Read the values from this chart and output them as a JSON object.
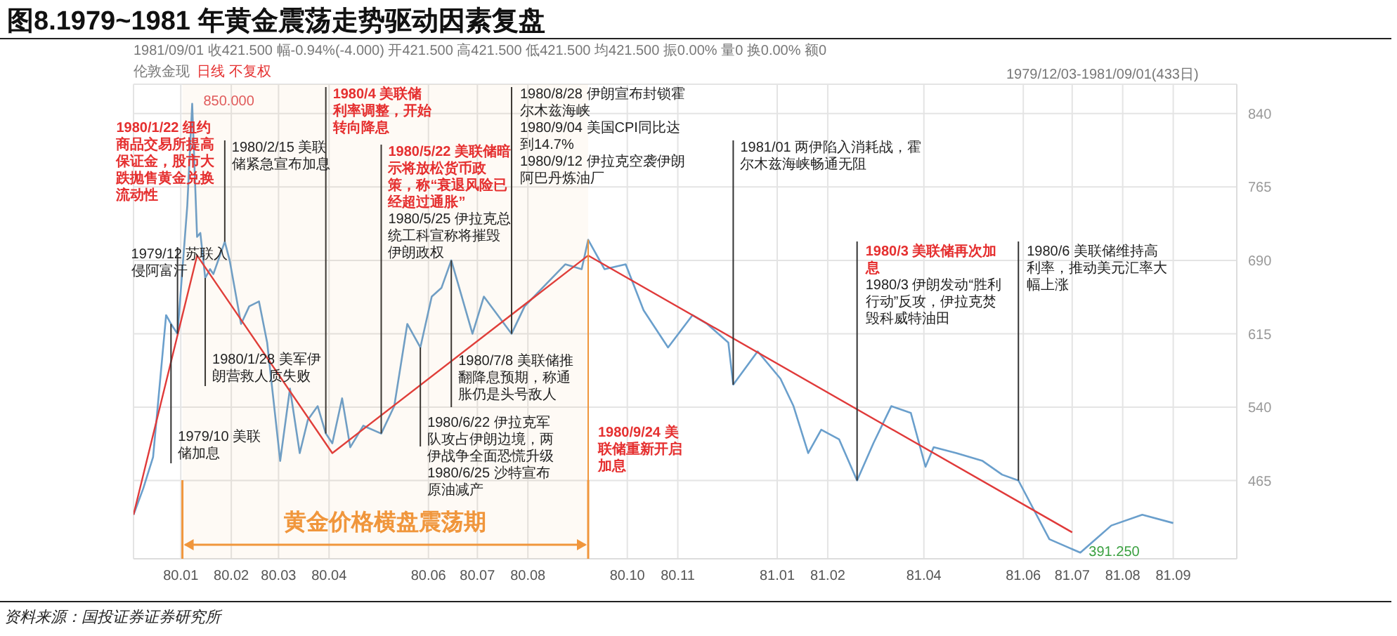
{
  "chart_data": {
    "type": "line",
    "title": "图8.1979~1981 年黄金震荡走势驱动因素复盘",
    "xlim": [
      "1979-12-03",
      "1981-10-10"
    ],
    "xticks": [
      {
        "value": "1980-01-01",
        "label": "80.01"
      },
      {
        "value": "1980-02-01",
        "label": "80.02"
      },
      {
        "value": "1980-03-01",
        "label": "80.03"
      },
      {
        "value": "1980-04-01",
        "label": "80.04"
      },
      {
        "value": "1980-06-01",
        "label": "80.06"
      },
      {
        "value": "1980-07-01",
        "label": "80.07"
      },
      {
        "value": "1980-08-01",
        "label": "80.08"
      },
      {
        "value": "1980-10-01",
        "label": "80.10"
      },
      {
        "value": "1980-11-01",
        "label": "80.11"
      },
      {
        "value": "1981-01-01",
        "label": "81.01"
      },
      {
        "value": "1981-02-01",
        "label": "81.02"
      },
      {
        "value": "1981-04-01",
        "label": "81.04"
      },
      {
        "value": "1981-06-01",
        "label": "81.06"
      },
      {
        "value": "1981-07-01",
        "label": "81.07"
      },
      {
        "value": "1981-08-01",
        "label": "81.08"
      },
      {
        "value": "1981-09-01",
        "label": "81.09"
      }
    ],
    "ylim": [
      385,
      870
    ],
    "yticks": [
      465,
      540,
      615,
      690,
      765,
      840
    ],
    "grid": true,
    "series": [
      {
        "color": "#6a9fcc",
        "x": [
          "1979-12-03",
          "1979-12-09",
          "1979-12-15",
          "1979-12-23",
          "1979-12-26",
          "1979-12-30",
          "1980-01-05",
          "1980-01-08",
          "1980-01-11",
          "1980-01-13",
          "1980-01-16",
          "1980-01-19",
          "1980-01-21",
          "1980-01-28",
          "1980-01-31",
          "1980-02-07",
          "1980-02-12",
          "1980-02-18",
          "1980-02-23",
          "1980-03-02",
          "1980-03-08",
          "1980-03-14",
          "1980-03-19",
          "1980-03-25",
          "1980-03-30",
          "1980-04-03",
          "1980-04-09",
          "1980-04-14",
          "1980-04-22",
          "1980-05-03",
          "1980-05-11",
          "1980-05-19",
          "1980-05-27",
          "1980-06-03",
          "1980-06-09",
          "1980-06-15",
          "1980-06-28",
          "1980-07-05",
          "1980-07-22",
          "1980-07-30",
          "1980-08-24",
          "1980-09-03",
          "1980-09-07",
          "1980-09-17",
          "1980-09-30",
          "1980-10-11",
          "1980-10-26",
          "1980-11-10",
          "1980-11-19",
          "1980-12-02",
          "1980-12-05",
          "1980-12-20",
          "1981-01-03",
          "1981-01-11",
          "1981-01-20",
          "1981-01-28",
          "1981-02-08",
          "1981-02-19",
          "1981-03-01",
          "1981-03-12",
          "1981-03-24",
          "1981-04-02",
          "1981-04-07",
          "1981-04-21",
          "1981-05-07",
          "1981-05-19",
          "1981-05-29",
          "1981-06-17",
          "1981-07-06",
          "1981-07-25",
          "1981-08-13",
          "1981-09-01"
        ],
        "values": [
          430,
          457,
          489,
          634,
          625,
          615,
          746,
          850,
          714,
          718,
          672,
          681,
          676,
          709,
          690,
          625,
          643,
          648,
          606,
          485,
          559,
          493,
          527,
          541,
          513,
          503,
          549,
          499,
          521,
          513,
          541,
          625,
          601,
          653,
          662,
          690,
          615,
          653,
          615,
          643,
          686,
          681,
          711,
          681,
          686,
          639,
          601,
          634,
          625,
          606,
          563,
          597,
          569,
          541,
          493,
          517,
          507,
          465,
          503,
          541,
          534,
          479,
          499,
          493,
          485,
          471,
          465,
          405,
          391.25,
          419,
          430,
          421.5
        ]
      },
      {
        "type": "line",
        "color": "#e03a3a",
        "x": [
          "1979-12-03",
          "1980-01-11",
          "1980-04-03",
          "1980-09-07",
          "1981-07-01"
        ],
        "values": [
          430,
          695,
          493,
          695,
          412
        ]
      }
    ],
    "annotations": [
      "1981/09/01  收421.500  幅-0.94%(-4.000)  开421.500  高421.500  低421.500  均421.500  振0.00%  量0  换0.00%  额0",
      "伦敦金现",
      "日线 不复权",
      "1979/12/03-1981/09/01(433日)",
      "资料来源：国投证券证券研究所",
      {
        "text": "850.000",
        "x": "1980-01-08",
        "y": 850
      },
      {
        "text": "391.250",
        "x": "1981-07-06",
        "y": 391.25
      },
      {
        "text": "1980/1/22 纽约商品交易所提高保证金，股市大跌抛售黄金兑换流动性",
        "x": "1980-01-08",
        "y": 850
      },
      {
        "text": "1979/10 美联储加息",
        "x": "1979-12-26",
        "y": 625
      },
      {
        "text": "1979/12 苏联入侵阿富汗",
        "x": "1979-12-30",
        "y": 615
      },
      {
        "text": "1980/1/28 美军伊朗营救人质失败",
        "x": "1980-01-16",
        "y": 672
      },
      {
        "text": "1980/2/15 美联储紧急宣布加息",
        "x": "1980-01-28",
        "y": 709
      },
      {
        "text": "1980/4 美联储利率调整，开始转向降息",
        "x": "1980-03-30",
        "y": 513
      },
      {
        "text": "1980/5/22 美联储暗示将放松货币政策，称“衰退风险已经超过通胀”",
        "x": "1980-05-03",
        "y": 513
      },
      "1980/5/25 伊拉克总统工科宣称将摧毁伊朗政权",
      {
        "text": "1980/6/22 伊拉克军队攻占伊朗边境，两伊战争全面恐慌升级",
        "x": "1980-05-27",
        "y": 601
      },
      "1980/6/25 沙特宣布原油减产",
      {
        "text": "1980/7/8 美联储推翻降息预期，称通胀仍是头号敌人",
        "x": "1980-06-15",
        "y": 690
      },
      {
        "text": "1980/8/28 伊朗宣布封锁霍尔木兹海峡",
        "x": "1980-07-22",
        "y": 615
      },
      "1980/9/04 美国CPI同比达到14.7%",
      "1980/9/12 伊拉克空袭伊朗阿巴丹炼油厂",
      {
        "text": "1980/9/24 美联储重新开启加息",
        "x": "1980-09-07",
        "y": 711
      },
      {
        "text": "1981/01 两伊陷入消耗战，霍尔木兹海峡畅通无阻",
        "x": "1980-12-05",
        "y": 563
      },
      {
        "text": "1980/3 美联储再次加息",
        "x": "1981-02-19",
        "y": 465
      },
      "1980/3 伊朗发动“胜利行动”反攻，伊拉克焚毁科威特油田",
      {
        "text": "1980/6 美联储维持高利率，推动美元汇率大幅上涨",
        "x": "1981-05-29",
        "y": 465
      }
    ],
    "bands": [
      {
        "axis": "x",
        "from": "1980-01-02",
        "to": "1980-09-07",
        "label": "黄金价格横盘震荡期",
        "color": "#f0963c"
      }
    ]
  }
}
